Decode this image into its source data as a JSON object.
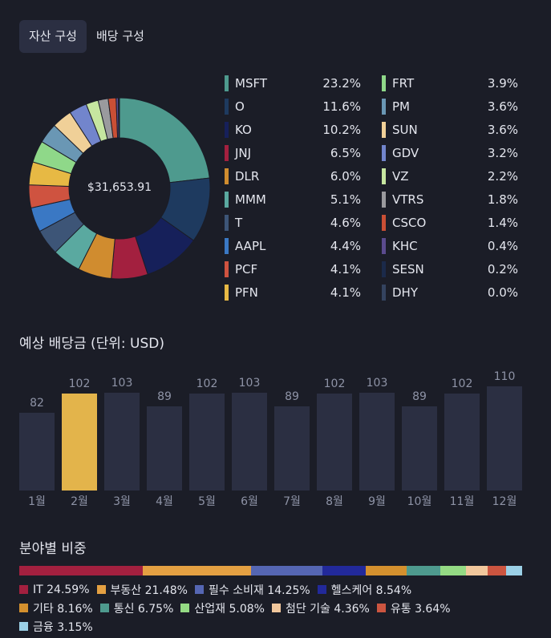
{
  "tabs": {
    "asset": "자산 구성",
    "dividend": "배당 구성"
  },
  "portfolio": {
    "total": "$31,653.91"
  },
  "holdings": [
    {
      "name": "MSFT",
      "pct": "23.2%",
      "value": 23.2,
      "color": "#4e9a8e"
    },
    {
      "name": "O",
      "pct": "11.6%",
      "value": 11.6,
      "color": "#1e3a5f"
    },
    {
      "name": "KO",
      "pct": "10.2%",
      "value": 10.2,
      "color": "#16205a"
    },
    {
      "name": "JNJ",
      "pct": "6.5%",
      "value": 6.5,
      "color": "#a3203f"
    },
    {
      "name": "DLR",
      "pct": "6.0%",
      "value": 6.0,
      "color": "#d08c2f"
    },
    {
      "name": "MMM",
      "pct": "5.1%",
      "value": 5.1,
      "color": "#5aa9a0"
    },
    {
      "name": "T",
      "pct": "4.6%",
      "value": 4.6,
      "color": "#3d5577"
    },
    {
      "name": "AAPL",
      "pct": "4.4%",
      "value": 4.4,
      "color": "#3a78c4"
    },
    {
      "name": "PCF",
      "pct": "4.1%",
      "value": 4.1,
      "color": "#cf5340"
    },
    {
      "name": "PFN",
      "pct": "4.1%",
      "value": 4.1,
      "color": "#e7b944"
    },
    {
      "name": "FRT",
      "pct": "3.9%",
      "value": 3.9,
      "color": "#8fd889"
    },
    {
      "name": "PM",
      "pct": "3.6%",
      "value": 3.6,
      "color": "#6a97b4"
    },
    {
      "name": "SUN",
      "pct": "3.6%",
      "value": 3.6,
      "color": "#f0d098"
    },
    {
      "name": "GDV",
      "pct": "3.2%",
      "value": 3.2,
      "color": "#7285cc"
    },
    {
      "name": "VZ",
      "pct": "2.2%",
      "value": 2.2,
      "color": "#c6e6a0"
    },
    {
      "name": "VTRS",
      "pct": "1.8%",
      "value": 1.8,
      "color": "#9a9a9e"
    },
    {
      "name": "CSCO",
      "pct": "1.4%",
      "value": 1.4,
      "color": "#c94f35"
    },
    {
      "name": "KHC",
      "pct": "0.4%",
      "value": 0.4,
      "color": "#5b4b8e"
    },
    {
      "name": "SESN",
      "pct": "0.2%",
      "value": 0.2,
      "color": "#1b2a4a"
    },
    {
      "name": "DHY",
      "pct": "0.0%",
      "value": 0.0,
      "color": "#34435f"
    }
  ],
  "dividends": {
    "title": "예상 배당금 (단위: USD)",
    "highlight_index": 1,
    "months": [
      {
        "label": "1월",
        "value": 82
      },
      {
        "label": "2월",
        "value": 102
      },
      {
        "label": "3월",
        "value": 103
      },
      {
        "label": "4월",
        "value": 89
      },
      {
        "label": "5월",
        "value": 102
      },
      {
        "label": "6월",
        "value": 103
      },
      {
        "label": "7월",
        "value": 89
      },
      {
        "label": "8월",
        "value": 102
      },
      {
        "label": "9월",
        "value": 103
      },
      {
        "label": "10월",
        "value": 89
      },
      {
        "label": "11월",
        "value": 102
      },
      {
        "label": "12월",
        "value": 110
      }
    ],
    "scale_max": 110
  },
  "sectors": {
    "title": "분야별 비중",
    "items": [
      {
        "label": "IT 24.59%",
        "value": 24.59,
        "color": "#a3203f"
      },
      {
        "label": "부동산 21.48%",
        "value": 21.48,
        "color": "#e4a042"
      },
      {
        "label": "필수 소비재 14.25%",
        "value": 14.25,
        "color": "#5566b3"
      },
      {
        "label": "헬스케어 8.54%",
        "value": 8.54,
        "color": "#22299a"
      },
      {
        "label": "기타 8.16%",
        "value": 8.16,
        "color": "#d4902e"
      },
      {
        "label": "통신 6.75%",
        "value": 6.75,
        "color": "#4e9a8e"
      },
      {
        "label": "산업재 5.08%",
        "value": 5.08,
        "color": "#94da84"
      },
      {
        "label": "첨단 기술 4.36%",
        "value": 4.36,
        "color": "#f1c79c"
      },
      {
        "label": "유통 3.64%",
        "value": 3.64,
        "color": "#cc5540"
      },
      {
        "label": "금융 3.15%",
        "value": 3.15,
        "color": "#9bd0e6"
      }
    ]
  }
}
